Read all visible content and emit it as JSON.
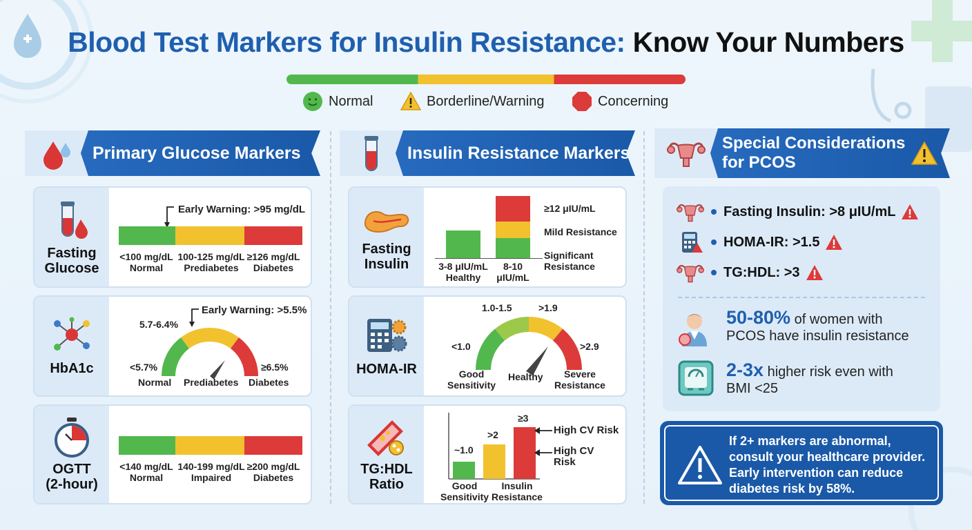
{
  "title": {
    "part1": "Blood Test Markers for Insulin Resistance:",
    "part2": "Know Your Numbers"
  },
  "legend": {
    "normal": "Normal",
    "borderline": "Borderline/Warning",
    "concerning": "Concerning"
  },
  "colors": {
    "green": "#52b84d",
    "yellow": "#f2c12e",
    "red": "#dd3a3a",
    "blue": "#1f5fae"
  },
  "col1": {
    "header": "Primary Glucose Markers",
    "fasting_glucose": {
      "label_line1": "Fasting",
      "label_line2": "Glucose",
      "warning": "Early Warning: >95 mg/dL",
      "segments": [
        {
          "range": "<100 mg/dL",
          "status": "Normal"
        },
        {
          "range": "100-125 mg/dL",
          "status": "Prediabetes"
        },
        {
          "range": "≥126 mg/dL",
          "status": "Diabetes"
        }
      ]
    },
    "hba1c": {
      "label": "HbA1c",
      "warning": "Early Warning: >5.5%",
      "mid_range": "5.7-6.4%",
      "low": "<5.7%",
      "high": "≥6.5%",
      "low_status": "Normal",
      "mid_status": "Prediabetes",
      "high_status": "Diabetes"
    },
    "ogtt": {
      "label_line1": "OGTT",
      "label_line2": "(2-hour)",
      "segments": [
        {
          "range": "<140 mg/dL",
          "status": "Normal"
        },
        {
          "range": "140-199 mg/dL",
          "status": "Impaired"
        },
        {
          "range": "≥200 mg/dL",
          "status": "Diabetes"
        }
      ]
    }
  },
  "col2": {
    "header": "Insulin Resistance Markers",
    "fasting_insulin": {
      "label_line1": "Fasting",
      "label_line2": "Insulin",
      "bar1_line1": "3-8 μIU/mL",
      "bar1_line2": "Healthy",
      "bar2_line1": "8-10",
      "bar2_line2": "μIU/mL",
      "ann_top": "≥12 μIU/mL",
      "ann_mid": "Mild Resistance",
      "ann_bot_line1": "Significant",
      "ann_bot_line2": "Resistance"
    },
    "homa": {
      "label": "HOMA-IR",
      "t1": "1.0-1.5",
      "t2": ">1.9",
      "t3": "<1.0",
      "t4": ">2.9",
      "s1_line1": "Good",
      "s1_line2": "Sensitivity",
      "s2": "Healthy",
      "s3_line1": "Severe",
      "s3_line2": "Resistance"
    },
    "tghdl": {
      "label_line1": "TG:HDL",
      "label_line2": "Ratio",
      "chart_data": {
        "type": "bar",
        "categories": [
          "~1.0",
          ">2",
          "≥3"
        ],
        "values": [
          1.0,
          2.0,
          3.0
        ],
        "colors": [
          "#52b84d",
          "#f2c12e",
          "#dd3a3a"
        ]
      },
      "v1": "~1.0",
      "v2": ">2",
      "v3": "≥3",
      "x1_line1": "Good",
      "x1_line2": "Sensitivity",
      "x2_line1": "Insulin",
      "x2_line2": "Resistance",
      "ann1": "High CV Risk",
      "ann2_line1": "High CV",
      "ann2_line2": "Risk"
    }
  },
  "col3": {
    "header_line1": "Special Considerations",
    "header_line2": "for PCOS",
    "bullets": [
      "Fasting Insulin: >8 μIU/mL",
      "HOMA-IR: >1.5",
      "TG:HDL: >3"
    ],
    "stat1_big": "50-80%",
    "stat1_rest1": " of women with",
    "stat1_rest2": "PCOS have insulin resistance",
    "stat2_big": "2-3x",
    "stat2_rest1": " higher risk even with",
    "stat2_rest2": "BMI <25",
    "alert_lines": [
      "If 2+ markers are abnormal,",
      "consult your healthcare provider.",
      "Early intervention can reduce",
      "diabetes risk by 58%."
    ]
  }
}
